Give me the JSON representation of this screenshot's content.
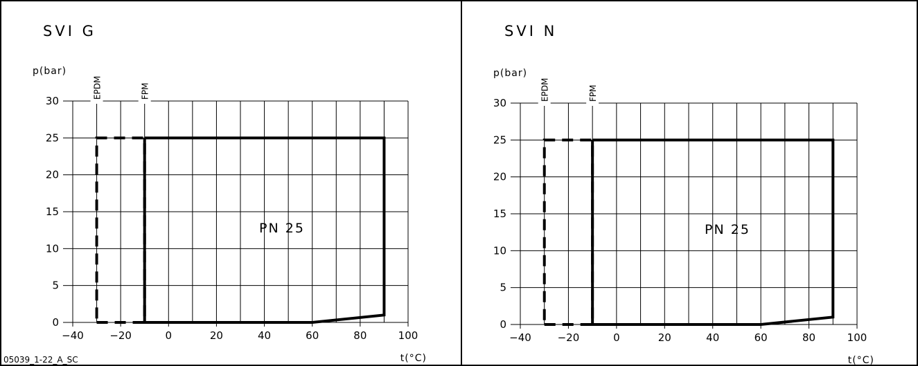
{
  "figure_code": "05039_1-22_A_SC",
  "colors": {
    "ink": "#000000",
    "background": "#ffffff",
    "grid": "#000000"
  },
  "chart_data": [
    {
      "type": "line",
      "title": "SVI   G",
      "xlabel": "t(°C)",
      "ylabel": "p(bar)",
      "xlim": [
        -40,
        100
      ],
      "ylim": [
        0,
        30
      ],
      "x_ticks": [
        -40,
        -20,
        0,
        20,
        40,
        60,
        80,
        100
      ],
      "y_ticks": [
        0,
        5,
        10,
        15,
        20,
        25,
        30
      ],
      "grid": true,
      "region_label": "PN 25",
      "series": [
        {
          "name": "EPDM",
          "style": "dashed",
          "x": [
            -30,
            -10,
            -10,
            -30,
            -30
          ],
          "y": [
            0,
            0,
            25,
            25,
            0
          ]
        },
        {
          "name": "FPM",
          "style": "solid",
          "x": [
            -10,
            90,
            90,
            60,
            -10,
            -10
          ],
          "y": [
            25,
            25,
            1,
            0,
            0,
            25
          ]
        }
      ]
    },
    {
      "type": "line",
      "title": "SVI   N",
      "xlabel": "t(°C)",
      "ylabel": "p(bar)",
      "xlim": [
        -40,
        100
      ],
      "ylim": [
        0,
        30
      ],
      "x_ticks": [
        -40,
        -20,
        0,
        20,
        40,
        60,
        80,
        100
      ],
      "y_ticks": [
        0,
        5,
        10,
        15,
        20,
        25,
        30
      ],
      "grid": true,
      "region_label": "PN 25",
      "series": [
        {
          "name": "EPDM",
          "style": "dashed",
          "x": [
            -30,
            -10,
            -10,
            -30,
            -30
          ],
          "y": [
            0,
            0,
            25,
            25,
            0
          ]
        },
        {
          "name": "FPM",
          "style": "solid",
          "x": [
            -10,
            90,
            90,
            60,
            -10,
            -10
          ],
          "y": [
            25,
            25,
            1,
            0,
            0,
            25
          ]
        }
      ]
    }
  ]
}
